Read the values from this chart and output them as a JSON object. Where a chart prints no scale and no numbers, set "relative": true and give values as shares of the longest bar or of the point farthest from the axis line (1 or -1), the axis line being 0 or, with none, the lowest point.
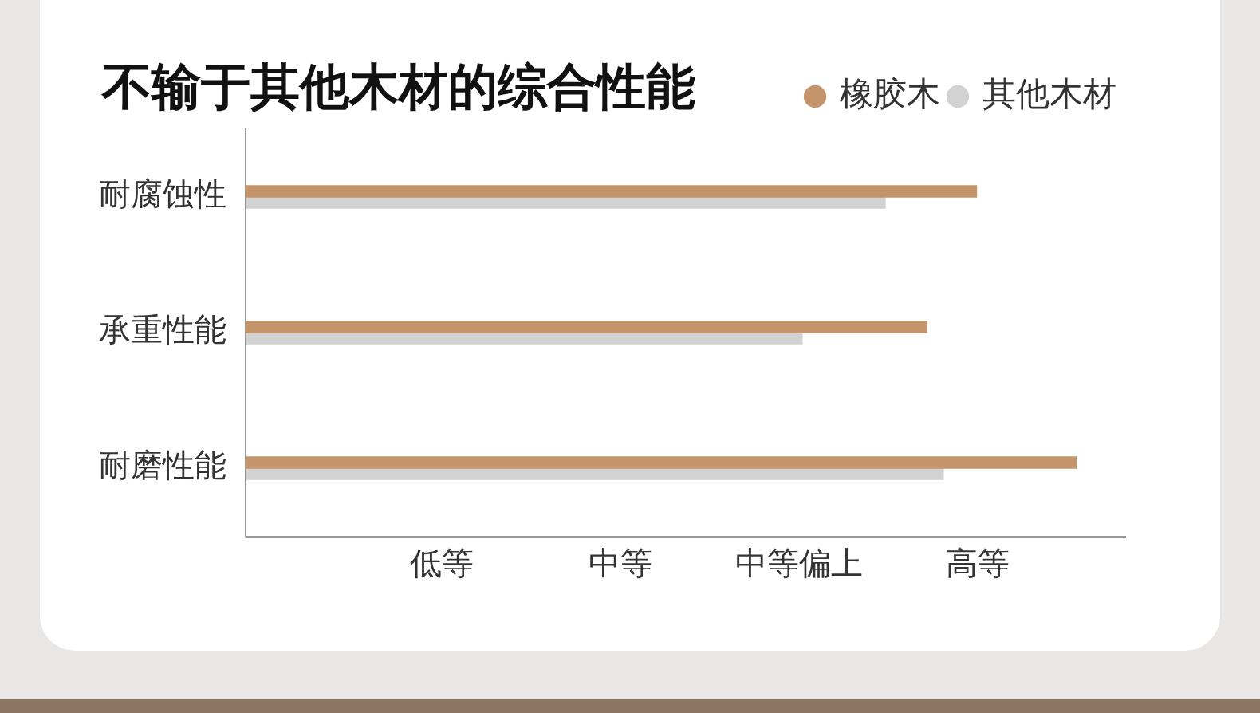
{
  "chart_data": {
    "type": "bar",
    "orientation": "horizontal",
    "title": "不输于其他木材的综合性能",
    "categories": [
      "耐腐蚀性",
      "承重性能",
      "耐磨性能"
    ],
    "series": [
      {
        "name": "橡胶木",
        "color": "#c4946a",
        "values": [
          0.88,
          0.82,
          1
        ]
      },
      {
        "name": "其他木材",
        "color": "#d2d2d2",
        "values": [
          0.77,
          0.67,
          0.84
        ]
      }
    ],
    "relative": true,
    "annotations": [
      "低等",
      "中等",
      "中等偏上",
      "高等"
    ],
    "grid": false,
    "legend": "top right"
  }
}
